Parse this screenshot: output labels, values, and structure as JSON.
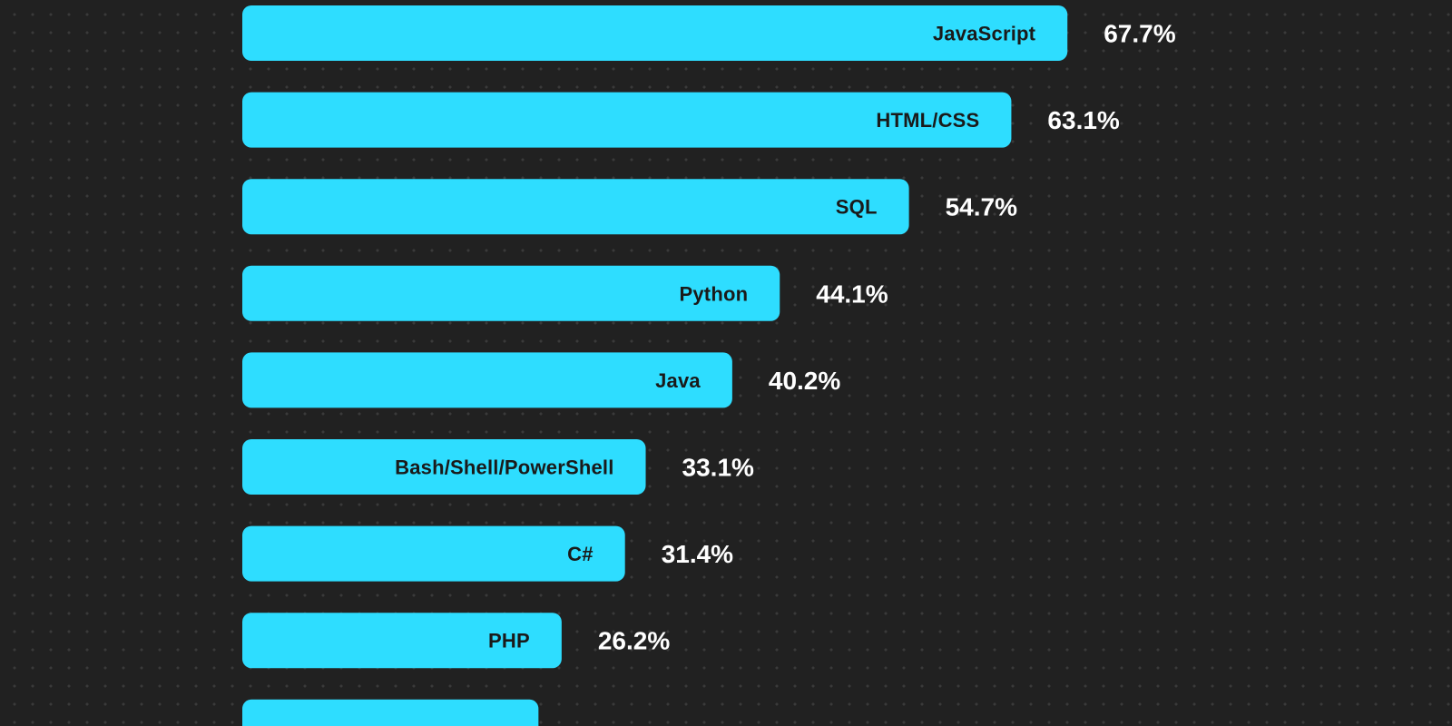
{
  "chart_data": {
    "type": "bar",
    "orientation": "horizontal",
    "categories": [
      "JavaScript",
      "HTML/CSS",
      "SQL",
      "Python",
      "Java",
      "Bash/Shell/PowerShell",
      "C#",
      "PHP",
      ""
    ],
    "values": [
      67.7,
      63.1,
      54.7,
      44.1,
      40.2,
      33.1,
      31.4,
      26.2,
      24.3
    ],
    "value_labels": [
      "67.7%",
      "63.1%",
      "54.7%",
      "44.1%",
      "40.2%",
      "33.1%",
      "31.4%",
      "26.2%",
      ""
    ],
    "unit": "%",
    "title": "",
    "xlabel": "",
    "ylabel": "",
    "grid": false,
    "legend": "none"
  },
  "colors": {
    "background": "#212121",
    "bar": "#2EDDFF",
    "bar_label": "#1A1A1A",
    "value_label": "#FFFFFF"
  }
}
